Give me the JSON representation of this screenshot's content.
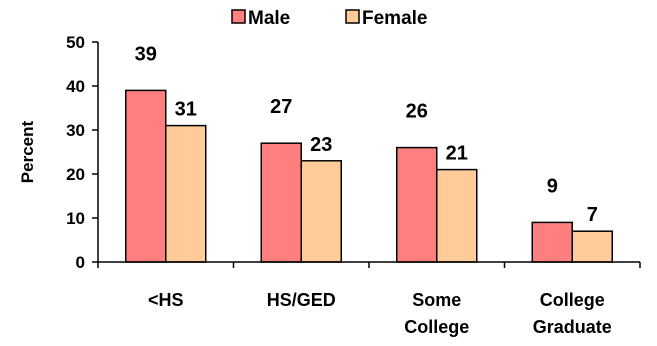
{
  "chart_data": {
    "type": "bar",
    "title": "",
    "xlabel": "",
    "ylabel": "Percent",
    "ylim": [
      0,
      50
    ],
    "yticks": [
      0,
      10,
      20,
      30,
      40,
      50
    ],
    "grid": false,
    "legend_position": "top",
    "categories": [
      [
        "<HS"
      ],
      [
        "HS/GED"
      ],
      [
        "Some",
        "College"
      ],
      [
        "College",
        "Graduate"
      ]
    ],
    "series": [
      {
        "name": "Male",
        "color": "#FF7F7F",
        "values": [
          39,
          27,
          26,
          9
        ]
      },
      {
        "name": "Female",
        "color": "#FFCC99",
        "values": [
          31,
          23,
          21,
          7
        ]
      }
    ]
  }
}
